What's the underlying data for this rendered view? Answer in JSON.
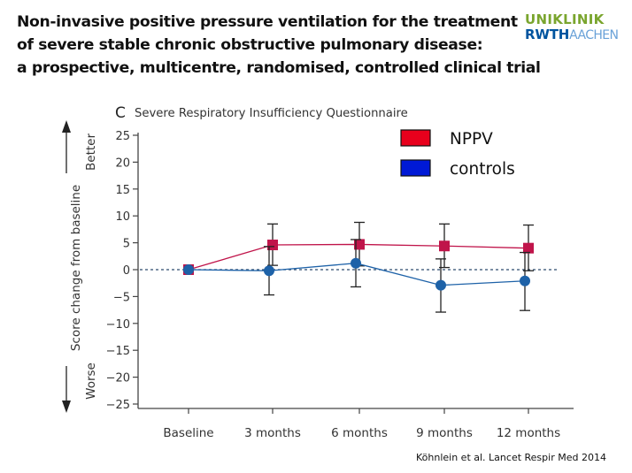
{
  "slide": {
    "title_lines": [
      "Non-invasive positive pressure ventilation for the treatment",
      "of severe stable chronic obstructive pulmonary disease:",
      "a prospective, multicentre, randomised, controlled clinical trial"
    ],
    "logo_top": "UNIKLINIK",
    "logo_bottom_strong": "RWTH",
    "logo_bottom_light": "AACHEN",
    "citation": "Köhnlein et al. Lancet Respir Med 2014"
  },
  "chart_data": {
    "type": "line",
    "panel_label": "C",
    "title": "Severe Respiratory Insufficiency Questionnaire",
    "ylabel": "Score change from baseline",
    "ylabel_better": "Better",
    "ylabel_worse": "Worse",
    "categories": [
      "Baseline",
      "3 months",
      "6 months",
      "9 months",
      "12 months"
    ],
    "ylim": [
      -25,
      25
    ],
    "yticks": [
      25,
      20,
      15,
      10,
      5,
      0,
      -5,
      -10,
      -15,
      -20,
      -25
    ],
    "ytick_labels": [
      "25",
      "20",
      "15",
      "10",
      "5",
      "0",
      "−5",
      "−10",
      "−15",
      "−20",
      "−25"
    ],
    "reference_line": 0,
    "grid": false,
    "legend_position": "top-right",
    "series": [
      {
        "name": "NPPV",
        "color": "#c0144a",
        "legend_color": "#e8001c",
        "marker": "square",
        "values": [
          0,
          4.6,
          4.7,
          4.4,
          4.0
        ],
        "error_low": [
          null,
          0.8,
          0.7,
          0.4,
          -0.2
        ],
        "error_high": [
          null,
          8.5,
          8.8,
          8.5,
          8.3
        ]
      },
      {
        "name": "controls",
        "color": "#1e62a8",
        "legend_color": "#0019d6",
        "marker": "circle",
        "values": [
          0,
          -0.2,
          1.2,
          -2.9,
          -2.1
        ],
        "error_low": [
          null,
          -4.7,
          -3.2,
          -7.9,
          -7.6
        ],
        "error_high": [
          null,
          4.3,
          5.6,
          2.0,
          3.2
        ]
      }
    ]
  }
}
